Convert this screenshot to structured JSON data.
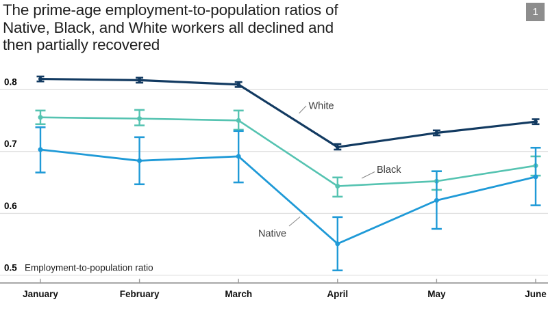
{
  "header": {
    "title_lines": [
      "The prime-age employment-to-population ratios of",
      "Native, Black, and White workers all declined and",
      "then partially recovered"
    ],
    "slide_number": "1"
  },
  "colors": {
    "grid": "#e1e1e1",
    "grid_bottom": "#e9e9e9",
    "axis_line": "#a8a8a8",
    "axis_tick": "#9a9a9a",
    "tick_label": "#000000",
    "axis_title_text": "#1f1f1f",
    "month_label": "#111111",
    "annotation_text": "#3a3a3a",
    "annotation_leader": "#8a8a8a",
    "title_text": "#1f1f1f",
    "badge_bg": "#8d8d8d",
    "badge_text": "#ffffff",
    "white_series": "#123a61",
    "black_series": "#55c3b1",
    "native_series": "#1f9ad7"
  },
  "chart_data": {
    "type": "line",
    "title": "The prime-age employment-to-population ratios of Native, Black, and White workers all declined and then partially recovered",
    "categories": [
      "January",
      "February",
      "March",
      "April",
      "May",
      "June"
    ],
    "xlabel": "",
    "ylabel": "Employment-to-population ratio",
    "ylim": [
      0.49,
      0.83
    ],
    "yticks": [
      {
        "label": "0.8",
        "value": 0.8
      },
      {
        "label": "0.7",
        "value": 0.7
      },
      {
        "label": "0.6",
        "value": 0.6
      },
      {
        "label": "0.5",
        "value": 0.5
      }
    ],
    "grid": "horizontal",
    "legend": "inline-annotations",
    "error_bars": true,
    "series": [
      {
        "name": "White",
        "color": "#123a61",
        "line_width": 3.2,
        "dot_radius": 3.0,
        "cap_width": 11,
        "values": [
          0.817,
          0.815,
          0.808,
          0.707,
          0.73,
          0.748
        ],
        "err_low": [
          0.813,
          0.811,
          0.804,
          0.703,
          0.726,
          0.744
        ],
        "err_high": [
          0.821,
          0.819,
          0.812,
          0.712,
          0.734,
          0.752
        ]
      },
      {
        "name": "Black",
        "color": "#55c3b1",
        "line_width": 2.6,
        "dot_radius": 3.5,
        "cap_width": 15,
        "values": [
          0.755,
          0.753,
          0.75,
          0.644,
          0.652,
          0.677
        ],
        "err_low": [
          0.744,
          0.742,
          0.735,
          0.627,
          0.638,
          0.661
        ],
        "err_high": [
          0.766,
          0.767,
          0.766,
          0.658,
          0.668,
          0.692
        ]
      },
      {
        "name": "Native",
        "color": "#1f9ad7",
        "line_width": 2.8,
        "dot_radius": 3.5,
        "cap_width": 15,
        "values": [
          0.703,
          0.685,
          0.692,
          0.551,
          0.621,
          0.659
        ],
        "err_low": [
          0.666,
          0.647,
          0.65,
          0.508,
          0.575,
          0.613
        ],
        "err_high": [
          0.739,
          0.723,
          0.733,
          0.594,
          0.668,
          0.706
        ]
      }
    ],
    "annotations": [
      {
        "text": "White",
        "text_x": 450.5,
        "text_y": 159.5,
        "line_from": [
          436.5,
          166
        ],
        "line_to": [
          447,
          155
        ]
      },
      {
        "text": "Black",
        "text_x": 550,
        "text_y": 253,
        "line_from": [
          528,
          261
        ],
        "line_to": [
          547,
          251.5
        ]
      },
      {
        "text": "Native",
        "text_x": 377,
        "text_y": 346.5,
        "line_from": [
          422,
          331
        ],
        "line_to": [
          438,
          317.5
        ]
      }
    ]
  }
}
